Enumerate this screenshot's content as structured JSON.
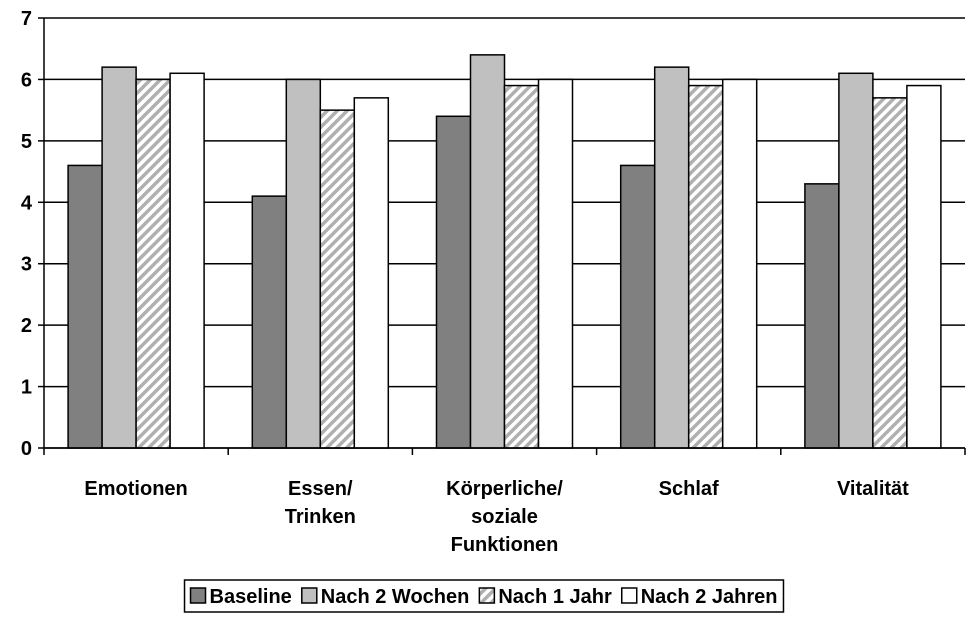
{
  "chart_data": {
    "type": "bar",
    "categories": [
      "Emotionen",
      "Essen/\nTrinken",
      "Körperliche/\nsoziale\nFunktionen",
      "Schlaf",
      "Vitalität"
    ],
    "series": [
      {
        "name": "Baseline",
        "color": "#808080",
        "values": [
          4.6,
          4.1,
          5.4,
          4.6,
          4.3
        ]
      },
      {
        "name": "Nach 2 Wochen",
        "color": "#c0c0c0",
        "values": [
          6.2,
          6.0,
          6.4,
          6.2,
          6.1
        ]
      },
      {
        "name": "Nach 1 Jahr",
        "color": "#b0b0b0",
        "pattern": "diagonal",
        "values": [
          6.0,
          5.5,
          5.9,
          5.9,
          5.7
        ]
      },
      {
        "name": "Nach 2 Jahren",
        "color": "#ffffff",
        "values": [
          6.1,
          5.7,
          6.0,
          6.0,
          5.9
        ]
      }
    ],
    "ylim": [
      0,
      7
    ],
    "yticks": [
      0,
      1,
      2,
      3,
      4,
      5,
      6,
      7
    ],
    "grid": true,
    "legend": "bottom"
  }
}
